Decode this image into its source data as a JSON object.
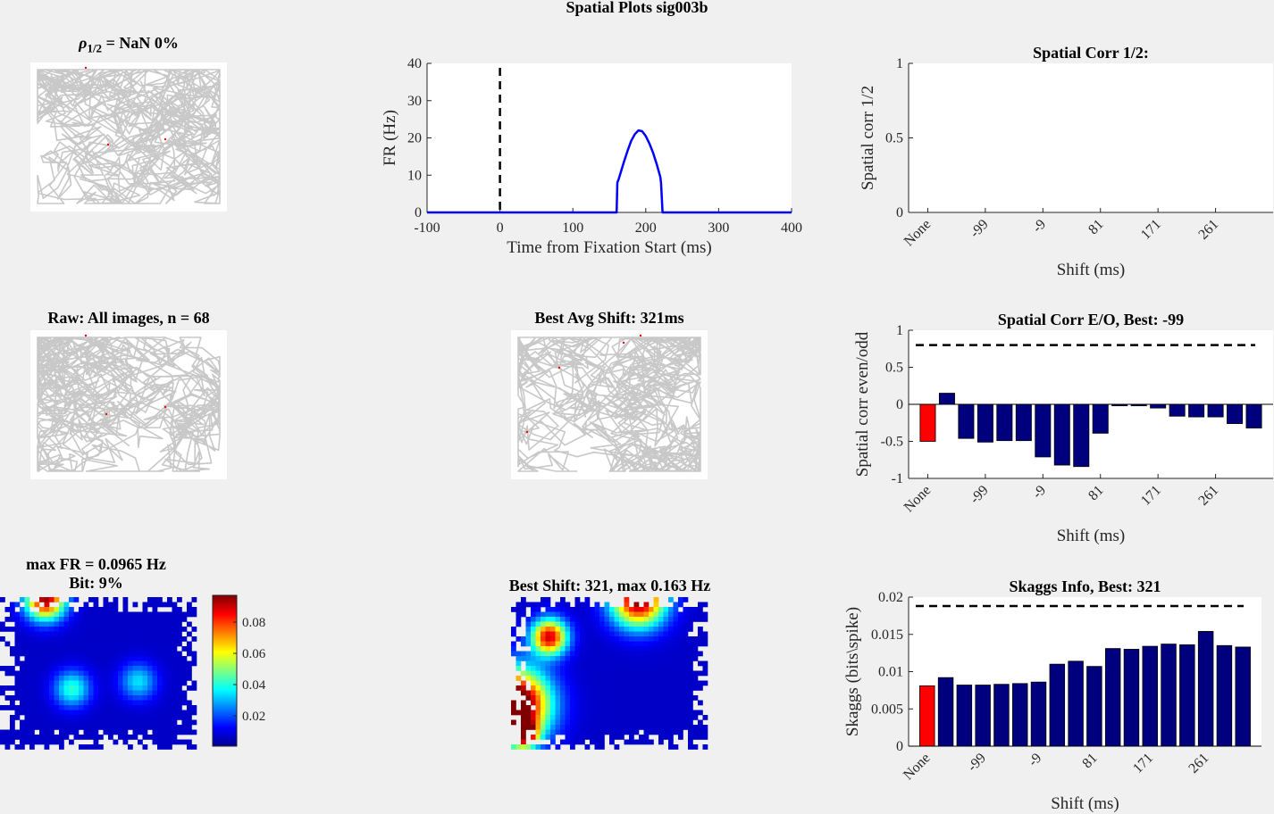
{
  "figure": {
    "title": "Spatial Plots sig003b",
    "rho_title": "= NaN 0%",
    "rho_symbol": "ρ",
    "rho_sub": "1/2",
    "raw_title": "Raw: All images, n = 68",
    "best_avg_title": "Best Avg Shift: 321ms",
    "maxfr_title": "max FR = 0.0965 Hz",
    "bit_title": "Bit: 9%",
    "best_shift_title": "Best Shift: 321, max 0.163 Hz",
    "colorbar_ticks": [
      "0.08",
      "0.06",
      "0.04",
      "0.02"
    ],
    "colors": {
      "trace": "#c8c8c8",
      "spike": "#ff0000",
      "bar": "#00007f",
      "bar_highlight": "#ff0000",
      "line": "#0000ff",
      "background": "#f0f0f0"
    }
  },
  "chart_data": [
    {
      "type": "line",
      "title": "",
      "xlabel": "Time from Fixation Start (ms)",
      "ylabel": "FR (Hz)",
      "xlim": [
        -100,
        400
      ],
      "ylim": [
        0,
        40
      ],
      "xticks": [
        "-100",
        "0",
        "100",
        "200",
        "300",
        "400"
      ],
      "yticks": [
        "0",
        "10",
        "20",
        "30",
        "40"
      ],
      "vline_x": 0,
      "x": [
        -100,
        160,
        161,
        163,
        166,
        170,
        175,
        180,
        185,
        190,
        195,
        200,
        205,
        210,
        215,
        220,
        221,
        223,
        400
      ],
      "y": [
        0,
        0,
        8,
        9,
        11,
        13.5,
        16.5,
        19.2,
        21,
        22,
        21.8,
        20.5,
        18.5,
        16,
        13,
        9.5,
        8,
        0,
        0
      ]
    },
    {
      "type": "bar",
      "title": "Spatial Corr 1/2:",
      "xlabel": "Shift (ms)",
      "ylabel": "Spatial corr 1/2",
      "ylim": [
        0,
        1
      ],
      "yticks": [
        "0",
        "0.5",
        "1"
      ],
      "xticklabels": [
        "None",
        "-99",
        "-9",
        "81",
        "171",
        "261"
      ],
      "values": []
    },
    {
      "type": "bar",
      "title": "Spatial Corr E/O, Best: -99",
      "xlabel": "Shift (ms)",
      "ylabel": "Spatial corr even/odd",
      "ylim": [
        -1,
        1
      ],
      "yticks": [
        "-1",
        "-0.5",
        "0",
        "0.5",
        "1"
      ],
      "xticklabels": [
        "None",
        "-99",
        "-9",
        "81",
        "171",
        "261"
      ],
      "threshold": 0.8,
      "values": [
        -0.5,
        0.15,
        -0.46,
        -0.51,
        -0.49,
        -0.49,
        -0.71,
        -0.82,
        -0.84,
        -0.39,
        -0.02,
        -0.02,
        -0.05,
        -0.16,
        -0.17,
        -0.17,
        -0.26,
        -0.32
      ]
    },
    {
      "type": "bar",
      "title": "Skaggs Info, Best: 321",
      "xlabel": "Shift (ms)",
      "ylabel": "Skaggs (bits\\spike)",
      "ylim": [
        0,
        0.02
      ],
      "yticks": [
        "0",
        "0.005",
        "0.01",
        "0.015",
        "0.02"
      ],
      "xticklabels": [
        "None",
        "-99",
        "-9",
        "81",
        "171",
        "261"
      ],
      "threshold": 0.0188,
      "values": [
        0.0081,
        0.0092,
        0.0082,
        0.0082,
        0.0083,
        0.0084,
        0.0086,
        0.011,
        0.0114,
        0.0107,
        0.0131,
        0.013,
        0.0134,
        0.0137,
        0.0136,
        0.0154,
        0.0135,
        0.0133
      ]
    }
  ]
}
